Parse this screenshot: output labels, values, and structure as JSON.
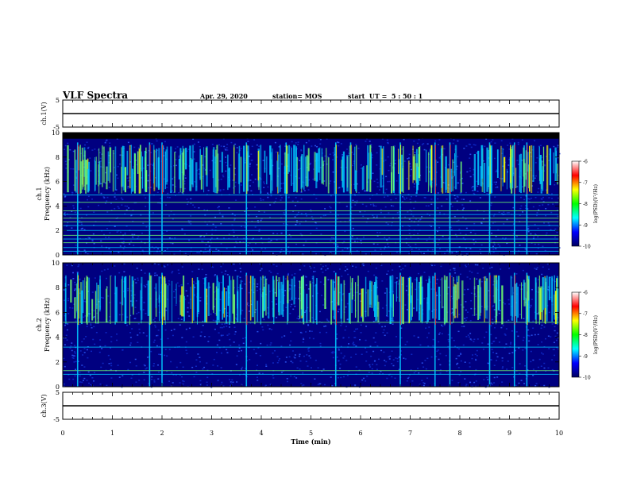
{
  "header": {
    "title": "VLF Spectra",
    "date": "Apr. 29, 2020",
    "station": "station= MOS",
    "start": "start  UT =  5 : 50 : 1"
  },
  "colors": {
    "background": "#000080",
    "noise": "#1030d0",
    "emission": "#00c8ff",
    "line": "#70ff70",
    "strong": "#ffff00",
    "peak": "#ff2020",
    "top_band": "#000000"
  },
  "colorbar": {
    "label": "log(PSD)(V²/Hz)",
    "ticks": [
      "-6",
      "-7",
      "-8",
      "-9",
      "-10"
    ],
    "stops": [
      "#000060",
      "#0000ff",
      "#00ffff",
      "#00ff00",
      "#ffff00",
      "#ff0000",
      "#ffffff"
    ]
  },
  "chart_data": [
    {
      "type": "line",
      "panel": "ch1-voltage",
      "ylabel": "ch.1(V)",
      "ylim": [
        -5,
        5
      ],
      "y_ticks": [
        "5",
        "-5"
      ],
      "x": [
        0,
        10
      ],
      "y": [
        0,
        0
      ]
    },
    {
      "type": "heatmap",
      "panel": "ch1-spectrogram",
      "ylabel": "ch.1\nFrequency (kHz)",
      "ylim": [
        0,
        10
      ],
      "y_ticks": [
        "0",
        "2",
        "4",
        "6",
        "8",
        "10"
      ],
      "xlim": [
        0,
        10
      ],
      "colorbar_range": [
        -10,
        -6
      ],
      "cutoff_khz": 9.5,
      "emission_band_khz": [
        5.0,
        9.0
      ],
      "horizontal_lines_khz": [
        0.3,
        0.6,
        1.0,
        1.3,
        1.6,
        2.0,
        2.4,
        2.7,
        3.0,
        3.3,
        3.6,
        4.3,
        4.9
      ],
      "strong_bursts_min": [
        0.3,
        1.75,
        2.0,
        3.7,
        4.5,
        5.5,
        5.8,
        6.8,
        7.5,
        7.8,
        8.6,
        9.1,
        9.35
      ]
    },
    {
      "type": "heatmap",
      "panel": "ch2-spectrogram",
      "ylabel": "ch.2\nFrequency (kHz)",
      "ylim": [
        0,
        10
      ],
      "y_ticks": [
        "0",
        "2",
        "4",
        "6",
        "8",
        "10"
      ],
      "xlim": [
        0,
        10
      ],
      "colorbar_range": [
        -10,
        -6
      ],
      "emission_band_khz": [
        5.0,
        9.0
      ],
      "horizontal_lines_khz": [
        1.0,
        1.3,
        3.2,
        5.2
      ],
      "strong_bursts_min": [
        0.3,
        1.75,
        2.0,
        3.7,
        5.5,
        6.8,
        7.5,
        7.8,
        8.6,
        9.1,
        9.35
      ]
    },
    {
      "type": "line",
      "panel": "ch3-voltage",
      "ylabel": "ch.3(V)",
      "ylim": [
        -5,
        5
      ],
      "y_ticks": [
        "5",
        "-5"
      ],
      "x": [
        0,
        10
      ],
      "y": [
        0,
        0
      ],
      "xlabel": "Time (min)",
      "x_ticks": [
        "0",
        "1",
        "2",
        "3",
        "4",
        "5",
        "6",
        "7",
        "8",
        "9",
        "10"
      ]
    }
  ]
}
